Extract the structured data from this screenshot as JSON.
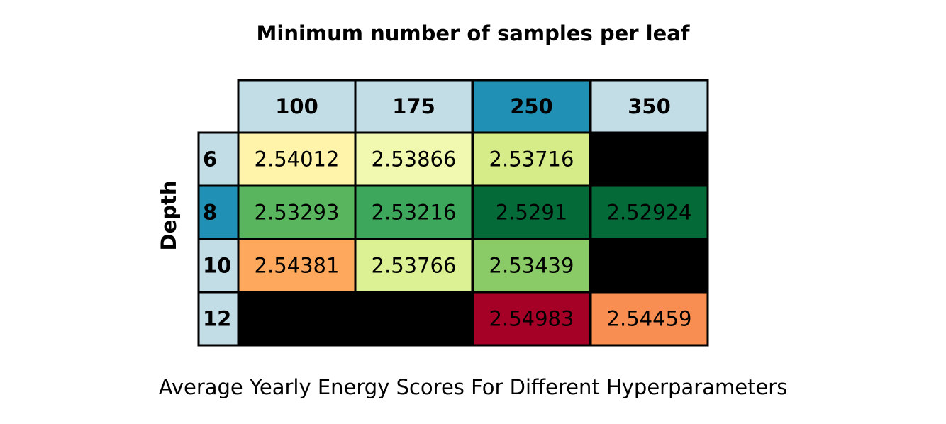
{
  "chart_data": {
    "type": "table",
    "title": "Minimum number of samples per leaf",
    "ylabel": "Depth",
    "caption": "Average Yearly Energy Scores For Different Hyperparameters",
    "columns": [
      "100",
      "175",
      "250",
      "350"
    ],
    "rows": [
      "6",
      "8",
      "10",
      "12"
    ],
    "values": [
      [
        2.54012,
        2.53866,
        2.53716,
        null
      ],
      [
        2.53293,
        2.53216,
        2.5291,
        2.52924
      ],
      [
        2.54381,
        2.53766,
        2.53439,
        null
      ],
      [
        null,
        null,
        2.54983,
        2.54459
      ]
    ],
    "value_labels": [
      [
        "2.54012",
        "2.53866",
        "2.53716",
        ""
      ],
      [
        "2.53293",
        "2.53216",
        "2.5291",
        "2.52924"
      ],
      [
        "2.54381",
        "2.53766",
        "2.53439",
        ""
      ],
      [
        "",
        "",
        "2.54983",
        "2.54459"
      ]
    ],
    "highlighted_column": "250",
    "highlighted_row": "8",
    "colors": {
      "header": "#c3dde6",
      "header_highlight": "#2190b5",
      "missing": "#000000",
      "cells": [
        [
          "#fff4aa",
          "#f1f9b0",
          "#d5ec88",
          "#000000"
        ],
        [
          "#59b65f",
          "#3da85c",
          "#046a38",
          "#046a38"
        ],
        [
          "#fda85d",
          "#dcf193",
          "#8acb67",
          "#000000"
        ],
        [
          "#000000",
          "#000000",
          "#a50026",
          "#f98e52"
        ]
      ]
    }
  }
}
